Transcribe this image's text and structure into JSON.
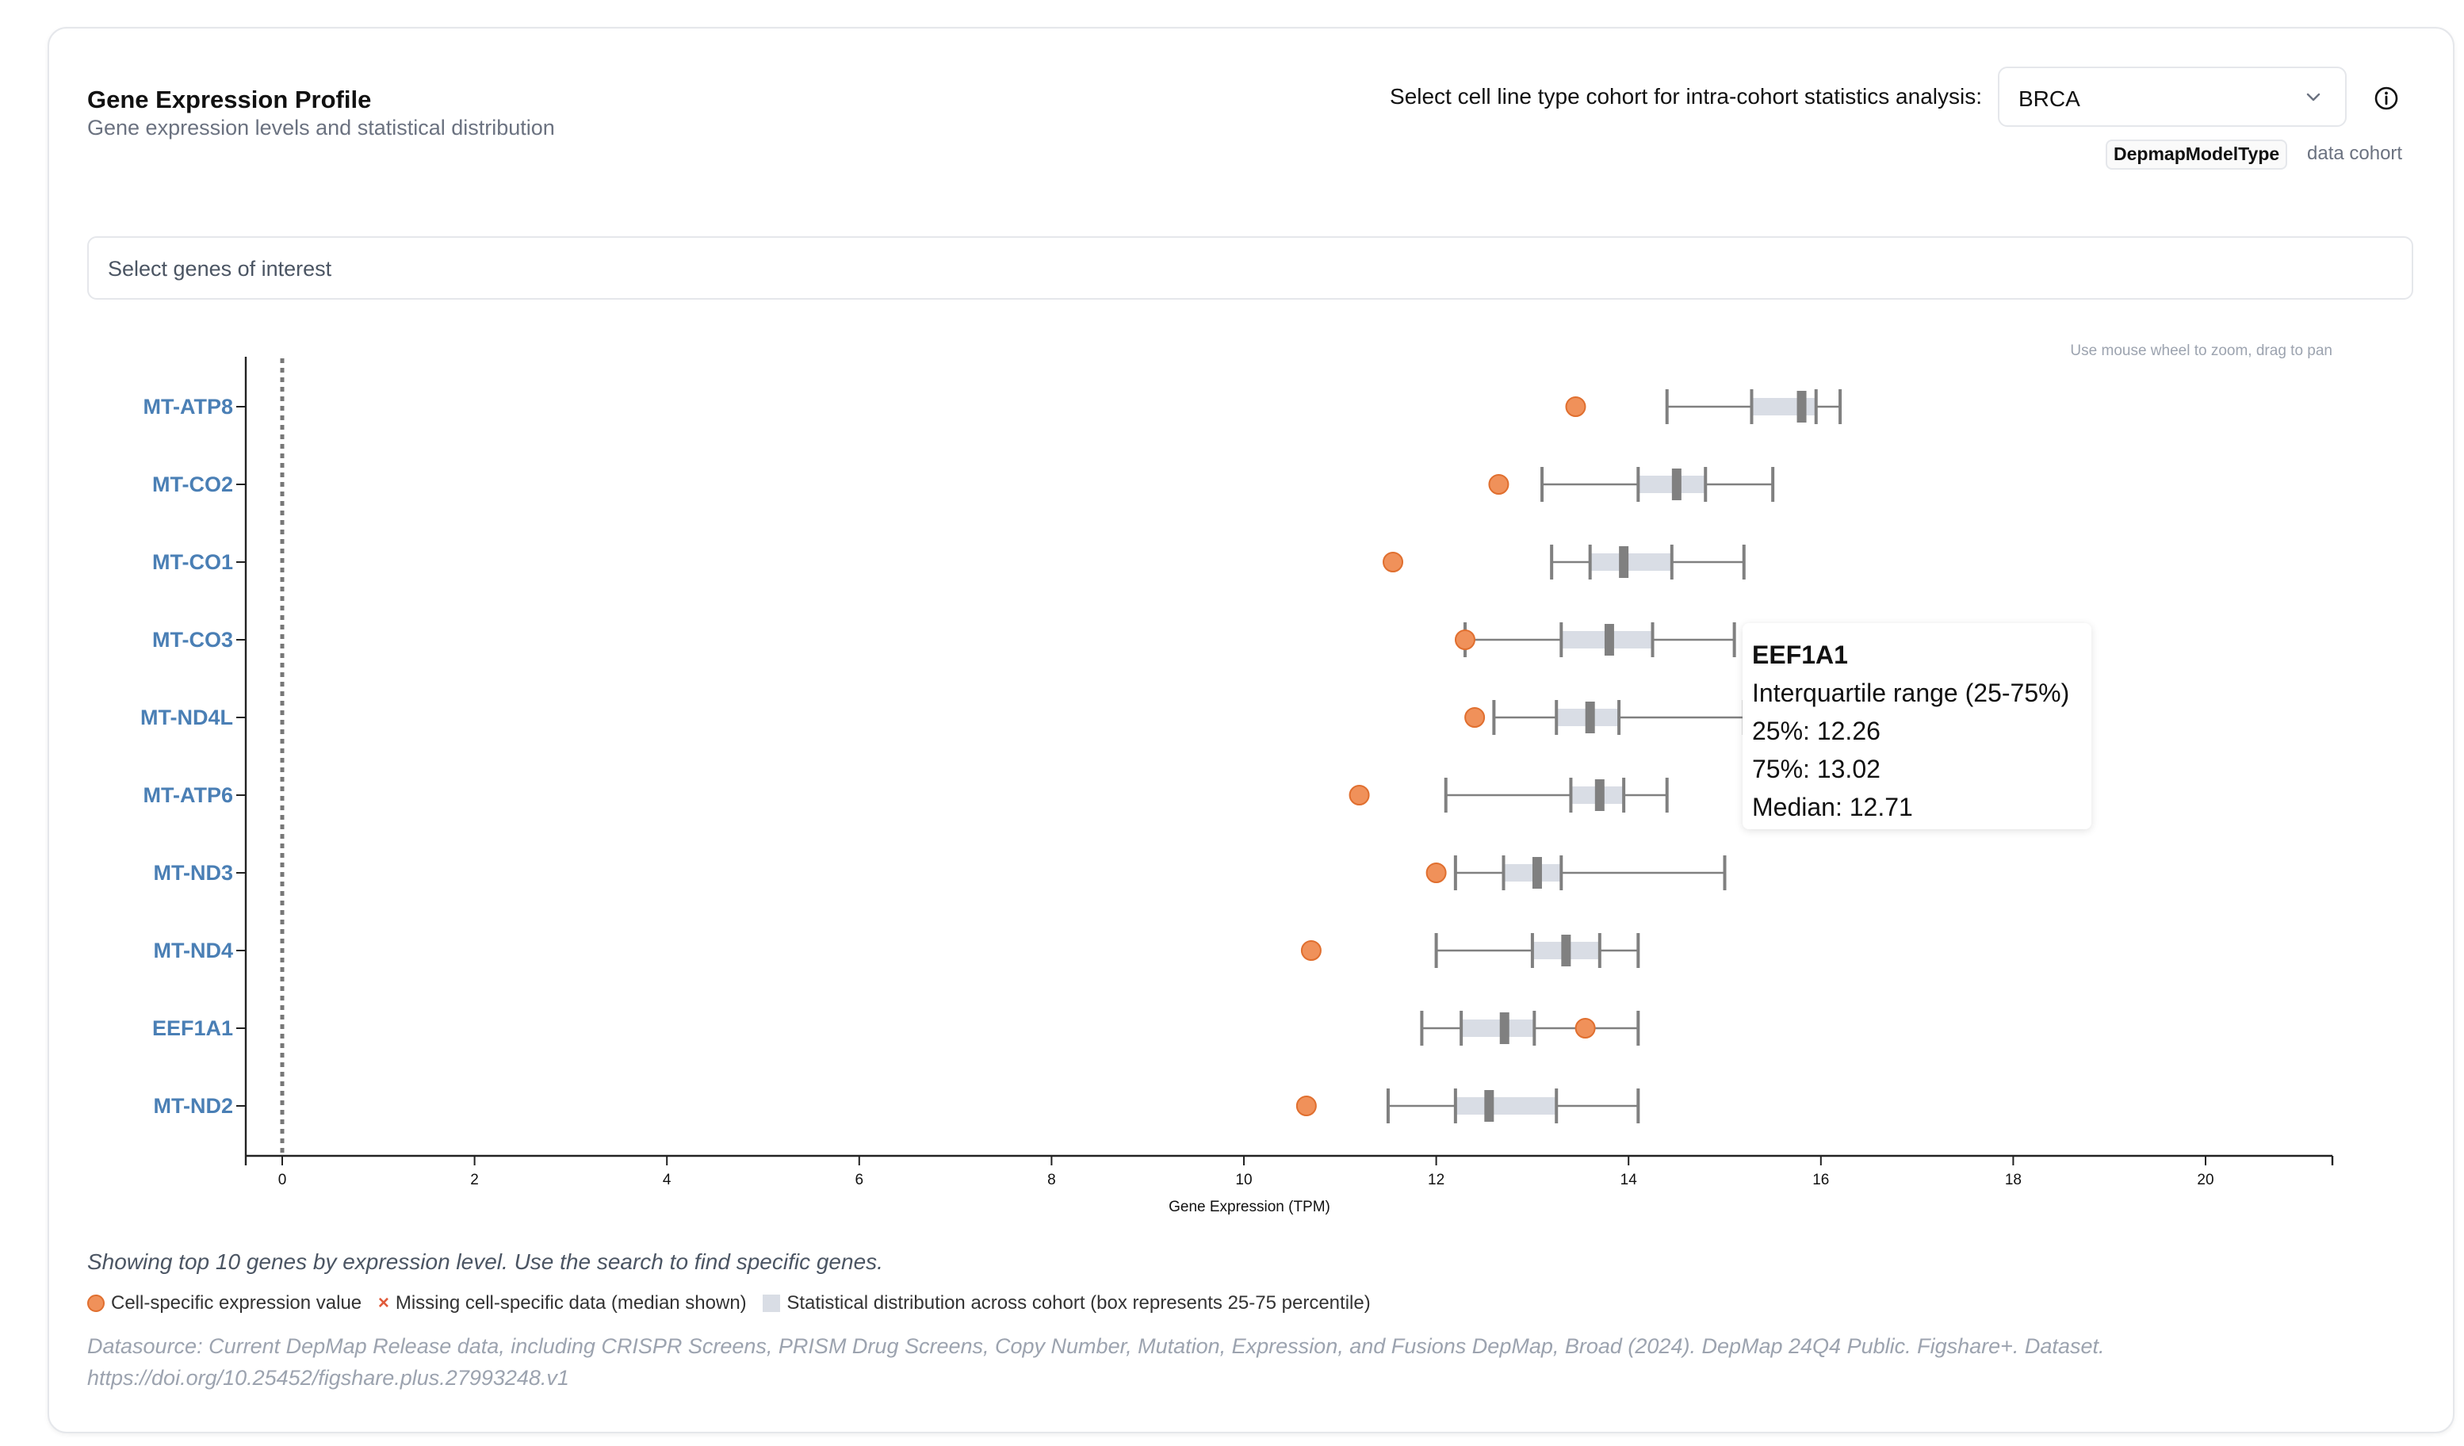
{
  "header": {
    "title": "Gene Expression Profile",
    "subtitle": "Gene expression levels and statistical distribution"
  },
  "cohort": {
    "label": "Select cell line type cohort for intra-cohort statistics analysis:",
    "selected": "BRCA",
    "badge": "DepmapModelType",
    "badge_suffix": "data cohort"
  },
  "search": {
    "placeholder": "Select genes of interest"
  },
  "hint": "Use mouse wheel to zoom, drag to pan",
  "chart_data": {
    "type": "boxplot",
    "xlabel": "Gene Expression (TPM)",
    "xlim": [
      -0.4,
      21.3
    ],
    "xticks": [
      0,
      2,
      4,
      6,
      8,
      10,
      12,
      14,
      16,
      18,
      20
    ],
    "reference_line_x": 0,
    "genes": [
      {
        "name": "MT-ATP8",
        "cell_value": 13.45,
        "stats": {
          "min": 14.4,
          "p25": 15.28,
          "median": 15.8,
          "p75": 15.95,
          "max": 16.2
        }
      },
      {
        "name": "MT-CO2",
        "cell_value": 12.65,
        "stats": {
          "min": 13.1,
          "p25": 14.1,
          "median": 14.5,
          "p75": 14.8,
          "max": 15.5
        }
      },
      {
        "name": "MT-CO1",
        "cell_value": 11.55,
        "stats": {
          "min": 13.2,
          "p25": 13.6,
          "median": 13.95,
          "p75": 14.45,
          "max": 15.2
        }
      },
      {
        "name": "MT-CO3",
        "cell_value": 12.3,
        "stats": {
          "min": 12.3,
          "p25": 13.3,
          "median": 13.8,
          "p75": 14.25,
          "max": 15.1
        }
      },
      {
        "name": "MT-ND4L",
        "cell_value": 12.4,
        "stats": {
          "min": 12.6,
          "p25": 13.25,
          "median": 13.6,
          "p75": 13.9,
          "max": 15.2
        }
      },
      {
        "name": "MT-ATP6",
        "cell_value": 11.2,
        "stats": {
          "min": 12.1,
          "p25": 13.4,
          "median": 13.7,
          "p75": 13.95,
          "max": 14.4
        }
      },
      {
        "name": "MT-ND3",
        "cell_value": 12.0,
        "stats": {
          "min": 12.2,
          "p25": 12.7,
          "median": 13.05,
          "p75": 13.3,
          "max": 15.0
        }
      },
      {
        "name": "MT-ND4",
        "cell_value": 10.7,
        "stats": {
          "min": 12.0,
          "p25": 13.0,
          "median": 13.35,
          "p75": 13.7,
          "max": 14.1
        }
      },
      {
        "name": "EEF1A1",
        "cell_value": 13.55,
        "stats": {
          "min": 11.85,
          "p25": 12.26,
          "median": 12.71,
          "p75": 13.02,
          "max": 14.1
        }
      },
      {
        "name": "MT-ND2",
        "cell_value": 10.65,
        "stats": {
          "min": 11.5,
          "p25": 12.2,
          "median": 12.55,
          "p75": 13.25,
          "max": 14.1
        }
      }
    ],
    "colors": {
      "cell_point": "#f0915a",
      "cell_point_stroke": "#e06f2f",
      "box_fill": "#d9dde5",
      "whisker": "#808080",
      "gene_label": "#4a7fb5",
      "reference_line": "#777777"
    }
  },
  "tooltip": {
    "title": "EEF1A1",
    "line1": "Interquartile range (25-75%)",
    "line2": "25%: 12.26",
    "line3": "75%: 13.02",
    "line4": "Median: 12.71"
  },
  "footer": {
    "note": "Showing top 10 genes by expression level. Use the search to find specific genes.",
    "legend_cell": "Cell-specific expression value",
    "legend_missing": "Missing cell-specific data (median shown)",
    "legend_dist": "Statistical distribution across cohort (box represents 25-75 percentile)",
    "source": "Datasource: Current DepMap Release data, including CRISPR Screens, PRISM Drug Screens, Copy Number, Mutation, Expression, and Fusions DepMap, Broad (2024). DepMap 24Q4 Public. Figshare+. Dataset. https://doi.org/10.25452/figshare.plus.27993248.v1"
  }
}
